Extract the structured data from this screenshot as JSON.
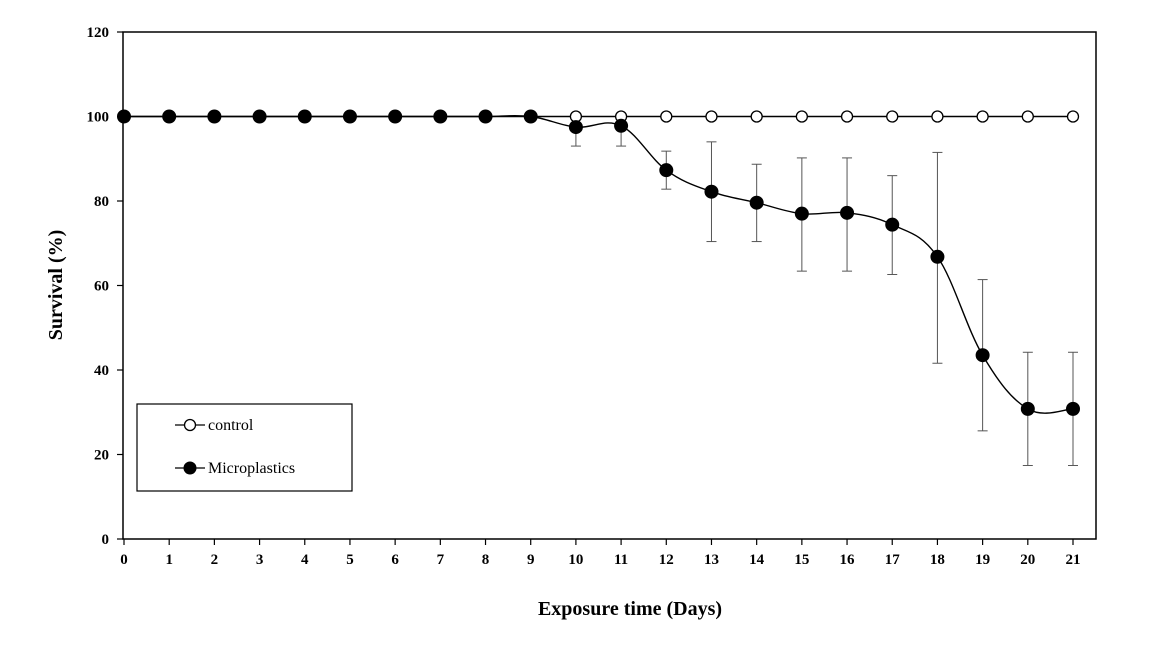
{
  "chart_data": {
    "type": "line",
    "title": "",
    "xlabel": "Exposure time (Days)",
    "ylabel": "Survival (%)",
    "xlim": [
      0,
      21
    ],
    "ylim": [
      0,
      120
    ],
    "x": [
      0,
      1,
      2,
      3,
      4,
      5,
      6,
      7,
      8,
      9,
      10,
      11,
      12,
      13,
      14,
      15,
      16,
      17,
      18,
      19,
      20,
      21
    ],
    "x_ticks": [
      "0",
      "1",
      "2",
      "3",
      "4",
      "5",
      "6",
      "7",
      "8",
      "9",
      "10",
      "11",
      "12",
      "13",
      "14",
      "15",
      "16",
      "17",
      "18",
      "19",
      "20",
      "21"
    ],
    "y_ticks": [
      "0",
      "20",
      "40",
      "60",
      "80",
      "100",
      "120"
    ],
    "grid": false,
    "legend_position": "bottom-left",
    "series": [
      {
        "name": "control",
        "marker": "open-circle",
        "values": [
          100,
          100,
          100,
          100,
          100,
          100,
          100,
          100,
          100,
          100,
          100,
          100,
          100,
          100,
          100,
          100,
          100,
          100,
          100,
          100,
          100,
          100
        ]
      },
      {
        "name": "Microplastics",
        "marker": "filled-circle",
        "values": [
          100,
          100,
          100,
          100,
          100,
          100,
          100,
          100,
          100,
          100,
          97.5,
          97.8,
          87.3,
          82.2,
          79.6,
          77.0,
          77.2,
          74.4,
          66.8,
          43.5,
          30.8,
          30.8
        ],
        "error_low": [
          null,
          null,
          null,
          null,
          null,
          null,
          null,
          null,
          null,
          null,
          93.0,
          93.0,
          82.8,
          70.4,
          70.4,
          63.4,
          63.4,
          62.6,
          41.6,
          25.6,
          17.4,
          17.4
        ],
        "error_high": [
          null,
          null,
          null,
          null,
          null,
          null,
          null,
          null,
          null,
          null,
          100,
          100,
          91.8,
          94.0,
          88.7,
          90.2,
          90.2,
          86.0,
          91.5,
          61.4,
          44.2,
          44.2
        ]
      }
    ]
  }
}
